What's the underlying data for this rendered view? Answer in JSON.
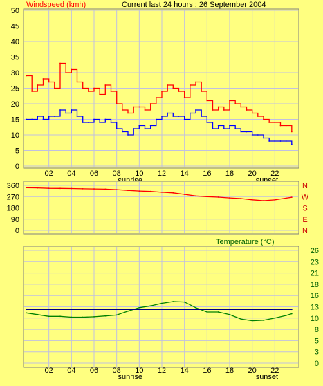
{
  "chart_data": [
    {
      "type": "line",
      "title": "Current last 24 hours : 26 September 2004",
      "ylabel": "Windspeed (kmh)",
      "ylim": [
        0,
        50
      ],
      "yticks": [
        "0",
        "5",
        "10",
        "15",
        "20",
        "25",
        "30",
        "35",
        "40",
        "45",
        "50"
      ],
      "x_ticks": [
        "02",
        "04",
        "06",
        "08",
        "10",
        "12",
        "14",
        "16",
        "18",
        "20",
        "22"
      ],
      "annotations": [
        "sunrise",
        "sunset"
      ],
      "grid": true,
      "series": [
        {
          "color": "#ff0000",
          "x": [
            0,
            0.5,
            1,
            1.5,
            2,
            2.5,
            3,
            3.5,
            4,
            4.5,
            5,
            5.5,
            6,
            6.5,
            7,
            7.5,
            8,
            8.5,
            9,
            9.5,
            10,
            10.5,
            11,
            11.5,
            12,
            12.5,
            13,
            13.5,
            14,
            14.5,
            15,
            15.5,
            16,
            16.5,
            17,
            17.5,
            18,
            18.5,
            19,
            19.5,
            20,
            20.5,
            21,
            21.5,
            22,
            22.5,
            23,
            23.5
          ],
          "values": [
            29,
            24,
            26,
            28,
            27,
            25,
            33,
            30,
            31,
            27,
            25,
            24,
            25,
            23,
            26,
            24,
            20,
            18,
            17,
            19,
            19,
            18,
            20,
            22,
            24,
            26,
            25,
            24,
            22,
            26,
            27,
            24,
            21,
            18,
            19,
            18,
            21,
            20,
            19,
            18,
            17,
            16,
            15,
            14,
            14,
            13,
            13,
            11
          ]
        },
        {
          "color": "#0000ff",
          "x": [
            0,
            0.5,
            1,
            1.5,
            2,
            2.5,
            3,
            3.5,
            4,
            4.5,
            5,
            5.5,
            6,
            6.5,
            7,
            7.5,
            8,
            8.5,
            9,
            9.5,
            10,
            10.5,
            11,
            11.5,
            12,
            12.5,
            13,
            13.5,
            14,
            14.5,
            15,
            15.5,
            16,
            16.5,
            17,
            17.5,
            18,
            18.5,
            19,
            19.5,
            20,
            20.5,
            21,
            21.5,
            22,
            22.5,
            23,
            23.5
          ],
          "values": [
            15,
            15,
            16,
            15,
            16,
            16,
            18,
            17,
            18,
            16,
            14,
            14,
            15,
            14,
            15,
            14,
            12,
            11,
            10,
            12,
            13,
            12,
            13,
            15,
            16,
            17,
            16,
            16,
            15,
            17,
            18,
            16,
            14,
            12,
            13,
            12,
            13,
            12,
            11,
            11,
            10,
            10,
            9,
            8,
            8,
            8,
            8,
            7
          ]
        }
      ]
    },
    {
      "type": "line",
      "title": "",
      "ylabel": "",
      "ylim": [
        0,
        360
      ],
      "yticks": [
        "0",
        "90",
        "180",
        "270",
        "360"
      ],
      "right_labels": [
        "N",
        "W",
        "S",
        "E",
        "N"
      ],
      "x_ticks": [],
      "annotations": [],
      "grid": true,
      "series": [
        {
          "color": "#ff0000",
          "x": [
            0,
            1,
            2,
            3,
            4,
            5,
            6,
            7,
            8,
            9,
            10,
            11,
            12,
            13,
            14,
            15,
            16,
            17,
            18,
            19,
            20,
            21,
            22,
            23,
            23.5
          ],
          "values": [
            342,
            340,
            337,
            336,
            335,
            333,
            332,
            330,
            326,
            320,
            315,
            312,
            305,
            300,
            288,
            275,
            270,
            266,
            260,
            255,
            245,
            238,
            244,
            258,
            265
          ]
        }
      ]
    },
    {
      "type": "line",
      "title": "Temperature (°C)",
      "ylabel": "",
      "ylim": [
        0,
        26
      ],
      "yticks": [
        "26",
        "23",
        "21",
        "18",
        "16",
        "13",
        "10",
        "8",
        "5",
        "3",
        "0"
      ],
      "x_ticks": [
        "02",
        "04",
        "06",
        "08",
        "10",
        "12",
        "14",
        "16",
        "18",
        "20",
        "22"
      ],
      "annotations": [
        "sunrise",
        "sunset"
      ],
      "grid": true,
      "series": [
        {
          "color": "#008000",
          "x": [
            0,
            1,
            2,
            3,
            4,
            5,
            6,
            7,
            8,
            9,
            10,
            11,
            12,
            13,
            14,
            15,
            16,
            17,
            18,
            19,
            20,
            21,
            22,
            23,
            23.5
          ],
          "values": [
            11.6,
            11.2,
            10.8,
            10.8,
            10.6,
            10.6,
            10.7,
            10.9,
            11.1,
            12.0,
            12.8,
            13.2,
            13.8,
            14.2,
            14.1,
            12.8,
            11.8,
            11.8,
            11.2,
            10.2,
            9.8,
            9.9,
            10.4,
            11.0,
            11.4
          ]
        },
        {
          "color": "#000080",
          "x": [
            0,
            23.5
          ],
          "values": [
            12.4,
            12.4
          ]
        }
      ]
    }
  ]
}
